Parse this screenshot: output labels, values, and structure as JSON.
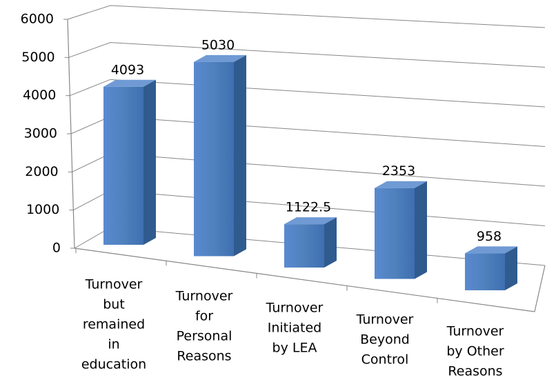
{
  "chart_data": {
    "type": "bar3d",
    "categories": [
      [
        "Turnover",
        "but",
        "remained",
        "in",
        "education"
      ],
      [
        "Turnover",
        "for",
        "Personal",
        "Reasons"
      ],
      [
        "Turnover",
        "Initiated",
        "by LEA"
      ],
      [
        "Turnover",
        "Beyond",
        "Control"
      ],
      [
        "Turnover",
        "by Other",
        "Reasons"
      ]
    ],
    "values": [
      4093,
      5030,
      1122.5,
      2353,
      958
    ],
    "color": "#4f81bd",
    "ylim": [
      0,
      6000
    ],
    "yticks": [
      0,
      1000,
      2000,
      3000,
      4000,
      5000,
      6000
    ],
    "grid": true
  }
}
